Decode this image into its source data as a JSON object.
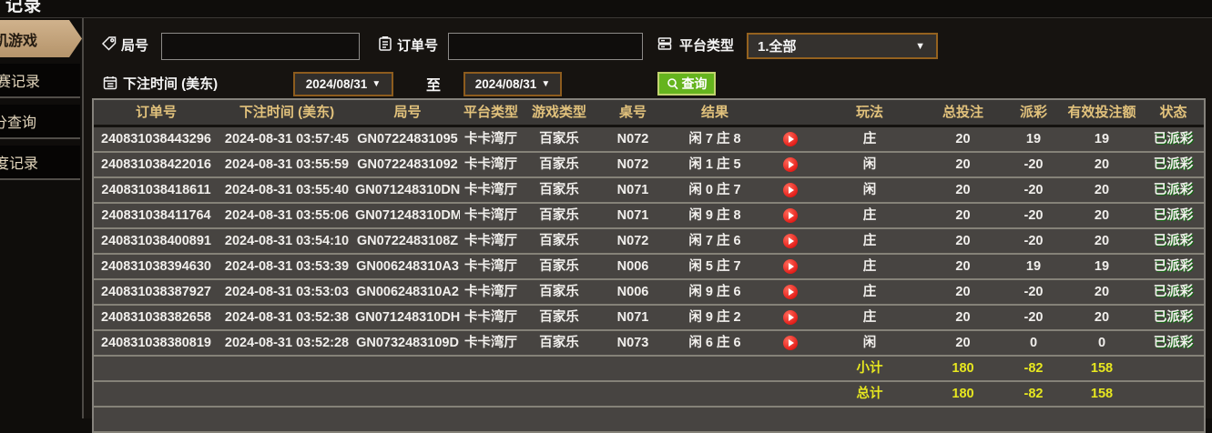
{
  "window": {
    "top_title": "记录"
  },
  "sidebar": {
    "items": [
      {
        "label": "机游戏",
        "active": true
      },
      {
        "label": "赛记录",
        "active": false
      },
      {
        "label": "分查询",
        "active": false
      },
      {
        "label": "度记录",
        "active": false
      }
    ]
  },
  "filters": {
    "round_label": "局号",
    "round_value": "",
    "order_label": "订单号",
    "order_value": "",
    "platform_label": "平台类型",
    "platform_value": "1.全部",
    "bet_time_label": "下注时间 (美东)",
    "date_from": "2024/08/31",
    "to_label": "至",
    "date_to": "2024/08/31",
    "search_label": "查询"
  },
  "icons": {
    "round": "tag-icon",
    "order": "clipboard-icon",
    "platform": "server-icon",
    "bet_time": "calendar-icon",
    "search": "magnifier-icon",
    "dropdown": "chevron-down-icon",
    "result_play": "play-icon"
  },
  "table": {
    "headers": [
      "订单号",
      "下注时间 (美东)",
      "局号",
      "平台类型",
      "游戏类型",
      "桌号",
      "结果",
      "",
      "玩法",
      "总投注",
      "派彩",
      "有效投注额",
      "状态"
    ],
    "rows": [
      {
        "order": "240831038443296",
        "time": "2024-08-31 03:57:45",
        "round": "GN07224831095",
        "platform": "卡卡湾厅",
        "game": "百家乐",
        "table_no": "N072",
        "result": "闲 7 庄 8",
        "play": "庄",
        "bet": "20",
        "payout": "19",
        "valid": "19",
        "status": "已派彩"
      },
      {
        "order": "240831038422016",
        "time": "2024-08-31 03:55:59",
        "round": "GN07224831092",
        "platform": "卡卡湾厅",
        "game": "百家乐",
        "table_no": "N072",
        "result": "闲 1 庄 5",
        "play": "闲",
        "bet": "20",
        "payout": "-20",
        "valid": "20",
        "status": "已派彩"
      },
      {
        "order": "240831038418611",
        "time": "2024-08-31 03:55:40",
        "round": "GN071248310DN",
        "platform": "卡卡湾厅",
        "game": "百家乐",
        "table_no": "N071",
        "result": "闲 0 庄 7",
        "play": "闲",
        "bet": "20",
        "payout": "-20",
        "valid": "20",
        "status": "已派彩"
      },
      {
        "order": "240831038411764",
        "time": "2024-08-31 03:55:06",
        "round": "GN071248310DM",
        "platform": "卡卡湾厅",
        "game": "百家乐",
        "table_no": "N071",
        "result": "闲 9 庄 8",
        "play": "庄",
        "bet": "20",
        "payout": "-20",
        "valid": "20",
        "status": "已派彩"
      },
      {
        "order": "240831038400891",
        "time": "2024-08-31 03:54:10",
        "round": "GN0722483108Z",
        "platform": "卡卡湾厅",
        "game": "百家乐",
        "table_no": "N072",
        "result": "闲 7 庄 6",
        "play": "庄",
        "bet": "20",
        "payout": "-20",
        "valid": "20",
        "status": "已派彩"
      },
      {
        "order": "240831038394630",
        "time": "2024-08-31 03:53:39",
        "round": "GN006248310A3",
        "platform": "卡卡湾厅",
        "game": "百家乐",
        "table_no": "N006",
        "result": "闲 5 庄 7",
        "play": "庄",
        "bet": "20",
        "payout": "19",
        "valid": "19",
        "status": "已派彩"
      },
      {
        "order": "240831038387927",
        "time": "2024-08-31 03:53:03",
        "round": "GN006248310A2",
        "platform": "卡卡湾厅",
        "game": "百家乐",
        "table_no": "N006",
        "result": "闲 9 庄 6",
        "play": "庄",
        "bet": "20",
        "payout": "-20",
        "valid": "20",
        "status": "已派彩"
      },
      {
        "order": "240831038382658",
        "time": "2024-08-31 03:52:38",
        "round": "GN071248310DH",
        "platform": "卡卡湾厅",
        "game": "百家乐",
        "table_no": "N071",
        "result": "闲 9 庄 2",
        "play": "庄",
        "bet": "20",
        "payout": "-20",
        "valid": "20",
        "status": "已派彩"
      },
      {
        "order": "240831038380819",
        "time": "2024-08-31 03:52:28",
        "round": "GN0732483109D",
        "platform": "卡卡湾厅",
        "game": "百家乐",
        "table_no": "N073",
        "result": "闲 6 庄 6",
        "play": "闲",
        "bet": "20",
        "payout": "0",
        "valid": "0",
        "status": "已派彩"
      }
    ],
    "subtotal": {
      "label": "小计",
      "bet": "180",
      "payout": "-82",
      "valid": "158"
    },
    "total": {
      "label": "总计",
      "bet": "180",
      "payout": "-82",
      "valid": "158"
    }
  },
  "colors": {
    "accent_tan": "#c3a57c",
    "header_text": "#e2c27c",
    "win_red": "#e03a3a",
    "loss_green": "#4ddf1f",
    "status_green": "#2fd32f",
    "total_yellow": "#e8e81f",
    "button_green": "#65b41e",
    "border_orange": "#94621f"
  }
}
